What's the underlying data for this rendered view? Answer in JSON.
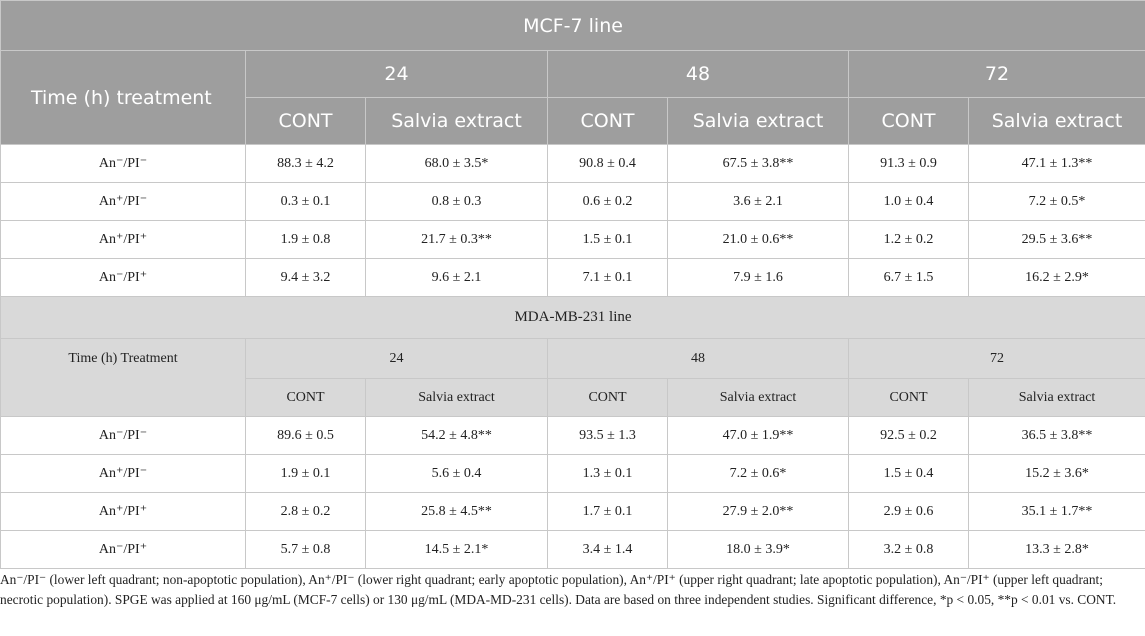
{
  "sections": [
    {
      "title": "MCF-7 line",
      "header": "Time (h) treatment",
      "times": [
        "24",
        "48",
        "72"
      ],
      "subheaders": [
        "CONT",
        "Salvia extract"
      ],
      "rows": [
        {
          "label": "An⁻/PI⁻",
          "values": [
            "88.3 ± 4.2",
            "68.0 ± 3.5*",
            "90.8 ± 0.4",
            "67.5 ± 3.8**",
            "91.3 ± 0.9",
            "47.1 ± 1.3**"
          ]
        },
        {
          "label": "An⁺/PI⁻",
          "values": [
            "0.3 ± 0.1",
            "0.8 ± 0.3",
            "0.6 ± 0.2",
            "3.6 ± 2.1",
            "1.0 ± 0.4",
            "7.2 ± 0.5*"
          ]
        },
        {
          "label": "An⁺/PI⁺",
          "values": [
            "1.9 ± 0.8",
            "21.7 ± 0.3**",
            "1.5 ± 0.1",
            "21.0 ± 0.6**",
            "1.2 ± 0.2",
            "29.5 ± 3.6**"
          ]
        },
        {
          "label": "An⁻/PI⁺",
          "values": [
            "9.4 ± 3.2",
            "9.6 ± 2.1",
            "7.1 ± 0.1",
            "7.9 ± 1.6",
            "6.7 ± 1.5",
            "16.2 ± 2.9*"
          ]
        }
      ]
    },
    {
      "title": "MDA-MB-231 line",
      "header": "Time (h) Treatment",
      "times": [
        "24",
        "48",
        "72"
      ],
      "subheaders": [
        "CONT",
        "Salvia extract"
      ],
      "rows": [
        {
          "label": "An⁻/PI⁻",
          "values": [
            "89.6 ± 0.5",
            "54.2 ± 4.8**",
            "93.5 ± 1.3",
            "47.0 ± 1.9**",
            "92.5 ± 0.2",
            "36.5 ± 3.8**"
          ]
        },
        {
          "label": "An⁺/PI⁻",
          "values": [
            "1.9 ± 0.1",
            "5.6 ± 0.4",
            "1.3 ± 0.1",
            "7.2 ± 0.6*",
            "1.5 ± 0.4",
            "15.2 ± 3.6*"
          ]
        },
        {
          "label": "An⁺/PI⁺",
          "values": [
            "2.8 ± 0.2",
            "25.8 ± 4.5**",
            "1.7 ± 0.1",
            "27.9 ± 2.0**",
            "2.9 ± 0.6",
            "35.1 ± 1.7**"
          ]
        },
        {
          "label": "An⁻/PI⁺",
          "values": [
            "5.7 ± 0.8",
            "14.5 ± 2.1*",
            "3.4 ± 1.4",
            "18.0 ± 3.9*",
            "3.2 ± 0.8",
            "13.3 ± 2.8*"
          ]
        }
      ]
    }
  ],
  "footnote": "An⁻/PI⁻ (lower left quadrant; non-apoptotic population), An⁺/PI⁻ (lower right quadrant; early apoptotic population), An⁺/PI⁺ (upper right quadrant; late apoptotic population), An⁻/PI⁺ (upper left quadrant; necrotic population). SPGE was applied at 160 μg/mL (MCF-7 cells) or 130 μg/mL (MDA-MD-231 cells). Data are based on three independent studies. Significant difference, *p < 0.05, **p < 0.01 vs. CONT."
}
